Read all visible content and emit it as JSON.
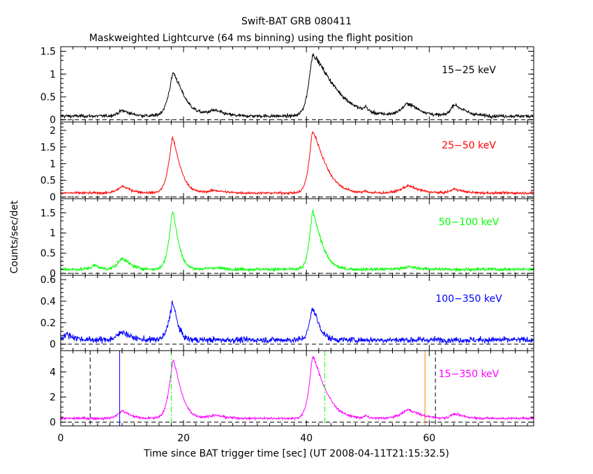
{
  "chart_data": {
    "type": "line",
    "title": "Swift-BAT GRB 080411",
    "subtitle": "Maskweighted Lightcurve (64 ms binning) using the flight position",
    "xlabel": "Time since BAT trigger time [sec] (UT 2008-04-11T21:15:32.5)",
    "ylabel": "Counts/sec/det",
    "xlim": [
      0,
      77
    ],
    "x_ticks": [
      0,
      20,
      40,
      60
    ],
    "x_tick_labels": [
      "0",
      "20",
      "40",
      "60"
    ],
    "grid": false,
    "panels": [
      {
        "name": "15-25 keV",
        "label": "15−25 keV",
        "color": "#000000",
        "ylim": [
          -0.05,
          1.6
        ],
        "y_ticks": [
          0,
          0.5,
          1,
          1.5
        ],
        "y_tick_labels": [
          "0",
          "0.5",
          "1",
          "1.5"
        ],
        "baseline": 0.08,
        "pulses": [
          [
            10.0,
            0.12,
            1.0,
            1.8
          ],
          [
            18.3,
            0.95,
            1.0,
            2.2
          ],
          [
            25.0,
            0.12,
            1.5,
            2.0
          ],
          [
            41.0,
            1.35,
            0.9,
            4.5
          ],
          [
            49.6,
            0.1,
            0.3,
            0.5
          ],
          [
            56.5,
            0.27,
            1.5,
            2.5
          ],
          [
            64.0,
            0.25,
            0.8,
            2.2
          ]
        ],
        "noise": 0.045
      },
      {
        "name": "25-50 keV",
        "label": "25−50 keV",
        "color": "#ff0000",
        "ylim": [
          -0.05,
          2.25
        ],
        "y_ticks": [
          0,
          0.5,
          1,
          1.5,
          2
        ],
        "y_tick_labels": [
          "0",
          "0.5",
          "1",
          "1.5",
          "2"
        ],
        "baseline": 0.12,
        "pulses": [
          [
            10.0,
            0.2,
            1.0,
            1.8
          ],
          [
            18.2,
            1.65,
            0.9,
            1.6
          ],
          [
            25.0,
            0.08,
            1.5,
            2.0
          ],
          [
            41.0,
            1.85,
            0.8,
            2.6
          ],
          [
            49.6,
            0.06,
            0.3,
            0.5
          ],
          [
            56.5,
            0.22,
            1.5,
            2.2
          ],
          [
            64.0,
            0.12,
            0.8,
            1.8
          ]
        ],
        "noise": 0.045
      },
      {
        "name": "50-100 keV",
        "label": "50−100 keV",
        "color": "#00ff00",
        "ylim": [
          -0.05,
          1.85
        ],
        "y_ticks": [
          0,
          0.5,
          1,
          1.5
        ],
        "y_tick_labels": [
          "0",
          "0.5",
          "1",
          "1.5"
        ],
        "baseline": 0.1,
        "pulses": [
          [
            5.5,
            0.1,
            0.8,
            1.0
          ],
          [
            10.0,
            0.28,
            1.0,
            1.6
          ],
          [
            18.2,
            1.45,
            0.8,
            1.2
          ],
          [
            25.0,
            0.04,
            1.5,
            2.0
          ],
          [
            41.0,
            1.45,
            0.7,
            1.8
          ],
          [
            56.5,
            0.06,
            1.5,
            2.0
          ]
        ],
        "noise": 0.05
      },
      {
        "name": "100-350 keV",
        "label": "100−350 keV",
        "color": "#0000ff",
        "ylim": [
          -0.06,
          0.64
        ],
        "y_ticks": [
          0,
          0.2,
          0.4,
          0.6
        ],
        "y_tick_labels": [
          "0",
          "0.2",
          "0.4",
          "0.6"
        ],
        "baseline": 0.04,
        "pulses": [
          [
            1.0,
            0.05,
            1.0,
            1.5
          ],
          [
            10.0,
            0.08,
            1.0,
            1.5
          ],
          [
            18.2,
            0.35,
            0.8,
            1.0
          ],
          [
            41.0,
            0.3,
            0.7,
            1.3
          ]
        ],
        "noise": 0.035
      },
      {
        "name": "15-350 keV",
        "label": "15−350 keV",
        "color": "#ff00ff",
        "ylim": [
          -0.3,
          5.7
        ],
        "y_ticks": [
          0,
          2,
          4
        ],
        "y_tick_labels": [
          "0",
          "2",
          "4"
        ],
        "baseline": 0.3,
        "pulses": [
          [
            10.0,
            0.6,
            1.0,
            1.6
          ],
          [
            18.3,
            4.7,
            0.9,
            1.6
          ],
          [
            25.0,
            0.25,
            1.5,
            2.0
          ],
          [
            41.0,
            4.9,
            0.8,
            2.6
          ],
          [
            49.6,
            0.2,
            0.3,
            0.5
          ],
          [
            56.5,
            0.7,
            1.5,
            2.4
          ],
          [
            64.0,
            0.35,
            0.8,
            2.0
          ]
        ],
        "noise": 0.12,
        "markers": [
          {
            "x": 4.8,
            "color": "#000000",
            "style": "dashed"
          },
          {
            "x": 9.6,
            "color": "#0000ff",
            "style": "solid"
          },
          {
            "x": 18.0,
            "color": "#00ff00",
            "style": "dashdot"
          },
          {
            "x": 43.0,
            "color": "#00ff00",
            "style": "dashdot"
          },
          {
            "x": 59.3,
            "color": "#ff8000",
            "style": "solid"
          },
          {
            "x": 61.0,
            "color": "#000000",
            "style": "dashed"
          }
        ]
      }
    ]
  }
}
